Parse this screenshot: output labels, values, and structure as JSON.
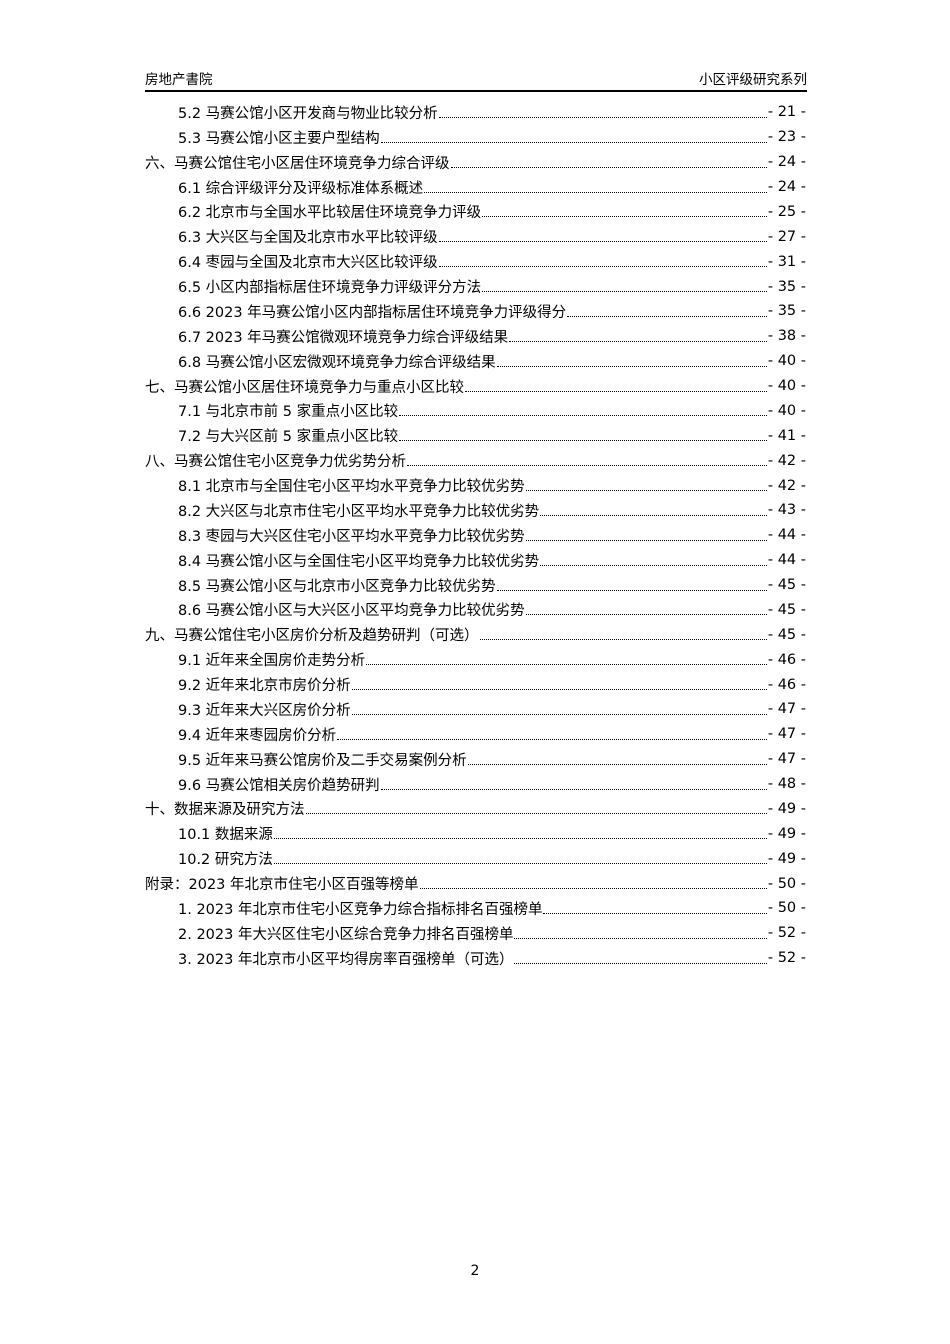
{
  "header": {
    "left": "房地产書院",
    "right": "小区评级研究系列"
  },
  "toc": [
    {
      "level": 2,
      "title": "5.2  马赛公馆小区开发商与物业比较分析",
      "page": "- 21 -"
    },
    {
      "level": 2,
      "title": "5.3  马赛公馆小区主要户型结构",
      "page": "- 23 -"
    },
    {
      "level": 1,
      "title": "六、马赛公馆住宅小区居住环境竞争力综合评级",
      "page": "- 24 -"
    },
    {
      "level": 2,
      "title": "6.1  综合评级评分及评级标准体系概述",
      "page": "- 24 -"
    },
    {
      "level": 2,
      "title": "6.2  北京市与全国水平比较居住环境竞争力评级",
      "page": "- 25 -"
    },
    {
      "level": 2,
      "title": "6.3  大兴区与全国及北京市水平比较评级",
      "page": "- 27 -"
    },
    {
      "level": 2,
      "title": "6.4  枣园与全国及北京市大兴区比较评级",
      "page": "- 31 -"
    },
    {
      "level": 2,
      "title": "6.5  小区内部指标居住环境竞争力评级评分方法",
      "page": "- 35 -"
    },
    {
      "level": 2,
      "title": "6.6  2023 年马赛公馆小区内部指标居住环境竞争力评级得分",
      "page": "- 35 -"
    },
    {
      "level": 2,
      "title": "6.7  2023 年马赛公馆微观环境竞争力综合评级结果",
      "page": "- 38 -"
    },
    {
      "level": 2,
      "title": "6.8  马赛公馆小区宏微观环境竞争力综合评级结果",
      "page": "- 40 -"
    },
    {
      "level": 1,
      "title": "七、马赛公馆小区居住环境竞争力与重点小区比较",
      "page": "- 40 -"
    },
    {
      "level": 2,
      "title": "7.1  与北京市前 5 家重点小区比较",
      "page": "- 40 -"
    },
    {
      "level": 2,
      "title": "7.2  与大兴区前 5 家重点小区比较",
      "page": "- 41 -"
    },
    {
      "level": 1,
      "title": "八、马赛公馆住宅小区竞争力优劣势分析",
      "page": "- 42 -"
    },
    {
      "level": 2,
      "title": "8.1  北京市与全国住宅小区平均水平竞争力比较优劣势",
      "page": "- 42 -"
    },
    {
      "level": 2,
      "title": "8.2  大兴区与北京市住宅小区平均水平竞争力比较优劣势",
      "page": "- 43 -"
    },
    {
      "level": 2,
      "title": "8.3  枣园与大兴区住宅小区平均水平竞争力比较优劣势",
      "page": "- 44 -"
    },
    {
      "level": 2,
      "title": "8.4  马赛公馆小区与全国住宅小区平均竞争力比较优劣势",
      "page": "- 44 -"
    },
    {
      "level": 2,
      "title": "8.5  马赛公馆小区与北京市小区竞争力比较优劣势",
      "page": "- 45 -"
    },
    {
      "level": 2,
      "title": "8.6  马赛公馆小区与大兴区小区平均竞争力比较优劣势",
      "page": "- 45 -"
    },
    {
      "level": 1,
      "title": "九、马赛公馆住宅小区房价分析及趋势研判（可选）",
      "page": "- 45 -"
    },
    {
      "level": 2,
      "title": "9.1  近年来全国房价走势分析",
      "page": "- 46 -"
    },
    {
      "level": 2,
      "title": "9.2  近年来北京市房价分析",
      "page": "- 46 -"
    },
    {
      "level": 2,
      "title": "9.3  近年来大兴区房价分析",
      "page": "- 47 -"
    },
    {
      "level": 2,
      "title": "9.4  近年来枣园房价分析",
      "page": "- 47 -"
    },
    {
      "level": 2,
      "title": "9.5  近年来马赛公馆房价及二手交易案例分析",
      "page": "- 47 -"
    },
    {
      "level": 2,
      "title": "9.6  马赛公馆相关房价趋势研判",
      "page": "- 48 -"
    },
    {
      "level": 1,
      "title": "十、数据来源及研究方法",
      "page": "- 49 -"
    },
    {
      "level": 2,
      "title": "10.1  数据来源",
      "page": "- 49 -"
    },
    {
      "level": 2,
      "title": "10.2  研究方法",
      "page": "- 49 -"
    },
    {
      "level": 1,
      "title": "附录：2023 年北京市住宅小区百强等榜单",
      "page": "- 50 -"
    },
    {
      "level": 2,
      "title": "1.  2023 年北京市住宅小区竞争力综合指标排名百强榜单",
      "page": "- 50 -"
    },
    {
      "level": 2,
      "title": "2.  2023 年大兴区住宅小区综合竞争力排名百强榜单",
      "page": "- 52 -"
    },
    {
      "level": 2,
      "title": "3.  2023 年北京市小区平均得房率百强榜单（可选）",
      "page": "- 52 -"
    }
  ],
  "footer": {
    "page_number": "2"
  }
}
